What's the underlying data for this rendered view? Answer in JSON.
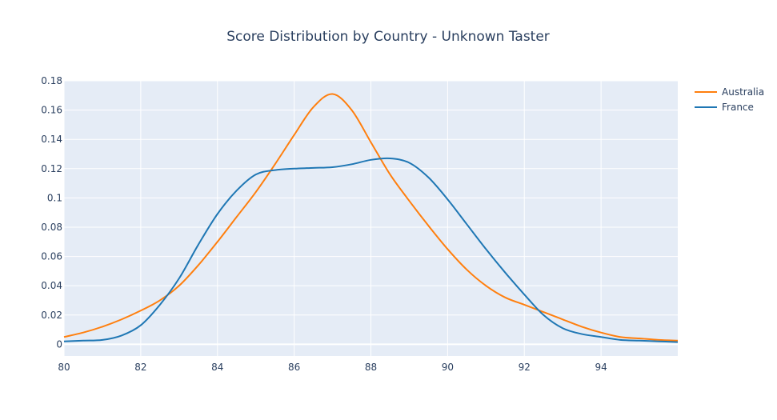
{
  "chart_data": {
    "type": "line",
    "title": "Score Distribution by Country - Unknown Taster",
    "xlabel": "",
    "ylabel": "",
    "xlim": [
      80,
      96
    ],
    "ylim": [
      -0.008,
      0.18
    ],
    "xticks": [
      80,
      82,
      84,
      86,
      88,
      90,
      92,
      94
    ],
    "xtick_labels": [
      "80",
      "82",
      "84",
      "86",
      "88",
      "90",
      "92",
      "94"
    ],
    "yticks": [
      0,
      0.02,
      0.04,
      0.06,
      0.08,
      0.1,
      0.12,
      0.14,
      0.16,
      0.18
    ],
    "ytick_labels": [
      "0",
      "0.02",
      "0.04",
      "0.06",
      "0.08",
      "0.1",
      "0.12",
      "0.14",
      "0.16",
      "0.18"
    ],
    "grid": true,
    "legend_position": "top-right",
    "colors": {
      "plot_bg": "#e5ecf6",
      "grid": "#ffffff",
      "text": "#2a3f5f"
    },
    "series": [
      {
        "name": "Australia",
        "color": "#ff7f0e",
        "x": [
          80,
          80.5,
          81,
          81.5,
          82,
          82.5,
          83,
          83.5,
          84,
          84.5,
          85,
          85.5,
          86,
          86.5,
          87,
          87.5,
          88,
          88.5,
          89,
          89.5,
          90,
          90.5,
          91,
          91.5,
          92,
          92.5,
          93,
          93.5,
          94,
          94.5,
          95,
          95.5,
          96
        ],
        "y": [
          0.005,
          0.008,
          0.012,
          0.017,
          0.023,
          0.03,
          0.04,
          0.054,
          0.07,
          0.087,
          0.104,
          0.123,
          0.143,
          0.162,
          0.171,
          0.16,
          0.138,
          0.116,
          0.098,
          0.081,
          0.065,
          0.051,
          0.04,
          0.032,
          0.027,
          0.022,
          0.017,
          0.012,
          0.008,
          0.005,
          0.004,
          0.003,
          0.0025
        ]
      },
      {
        "name": "France",
        "color": "#1f77b4",
        "x": [
          80,
          80.5,
          81,
          81.5,
          82,
          82.5,
          83,
          83.5,
          84,
          84.5,
          85,
          85.5,
          86,
          86.5,
          87,
          87.5,
          88,
          88.5,
          89,
          89.5,
          90,
          90.5,
          91,
          91.5,
          92,
          92.5,
          93,
          93.5,
          94,
          94.5,
          95,
          95.5,
          96
        ],
        "y": [
          0.002,
          0.0025,
          0.003,
          0.006,
          0.013,
          0.027,
          0.045,
          0.068,
          0.089,
          0.105,
          0.116,
          0.119,
          0.12,
          0.1205,
          0.121,
          0.123,
          0.126,
          0.127,
          0.124,
          0.114,
          0.099,
          0.082,
          0.065,
          0.049,
          0.034,
          0.02,
          0.011,
          0.007,
          0.005,
          0.003,
          0.0025,
          0.002,
          0.0015
        ]
      }
    ]
  }
}
